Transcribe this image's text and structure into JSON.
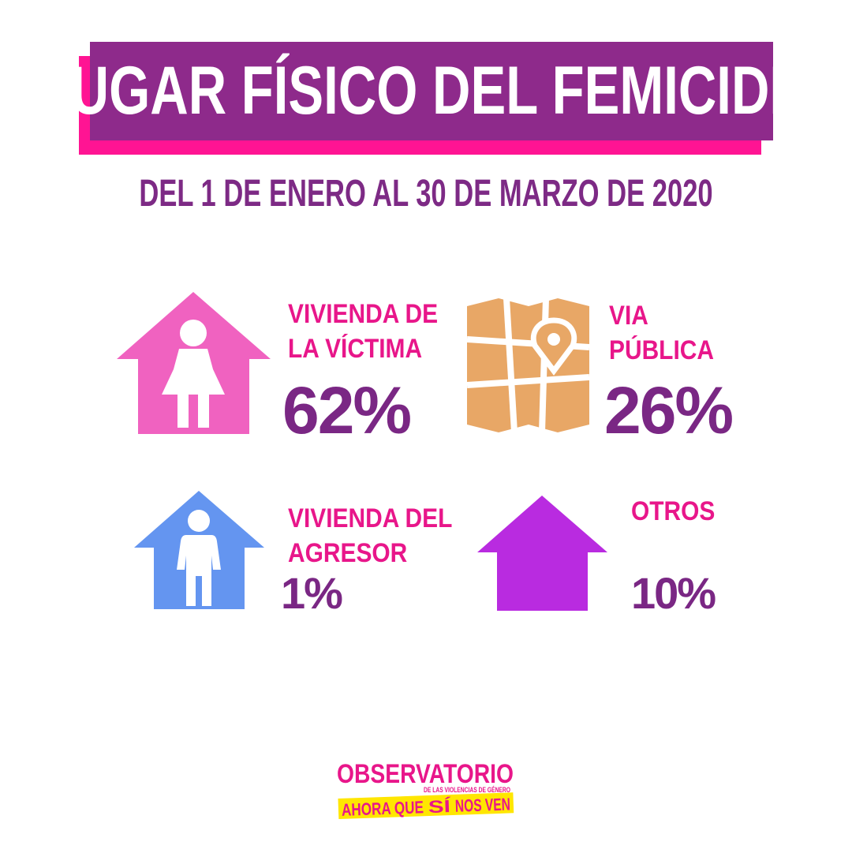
{
  "header": {
    "title": "LUGAR FÍSICO DEL FEMICIDIO",
    "subtitle": "DEL 1 DE ENERO AL 30 DE MARZO DE 2020"
  },
  "categories": [
    {
      "line1": "VIVIENDA DE",
      "line2": "LA VÍCTIMA",
      "value": "62%",
      "icon": "house-woman-icon",
      "color": "#f062c0"
    },
    {
      "line1": "VIA",
      "line2": "PÚBLICA",
      "value": "26%",
      "icon": "map-pin-icon",
      "color": "#e8a766"
    },
    {
      "line1": "VIVIENDA DEL",
      "line2": "AGRESOR",
      "value": "1%",
      "icon": "house-man-icon",
      "color": "#6495f0"
    },
    {
      "line1": "OTROS",
      "line2": "",
      "value": "10%",
      "icon": "house-icon",
      "color": "#b92be0"
    }
  ],
  "colors": {
    "title_bg": "#8e2a8b",
    "title_shadow": "#ff1493",
    "label": "#e8168a",
    "percent": "#7a2784"
  },
  "logo": {
    "word": "OBSERVATORIO",
    "tagline": "DE LAS VIOLENCIAS DE GÉNERO",
    "slogan_a": "AHORA QUE",
    "slogan_b": "SÍ",
    "slogan_c": "NOS VEN"
  }
}
